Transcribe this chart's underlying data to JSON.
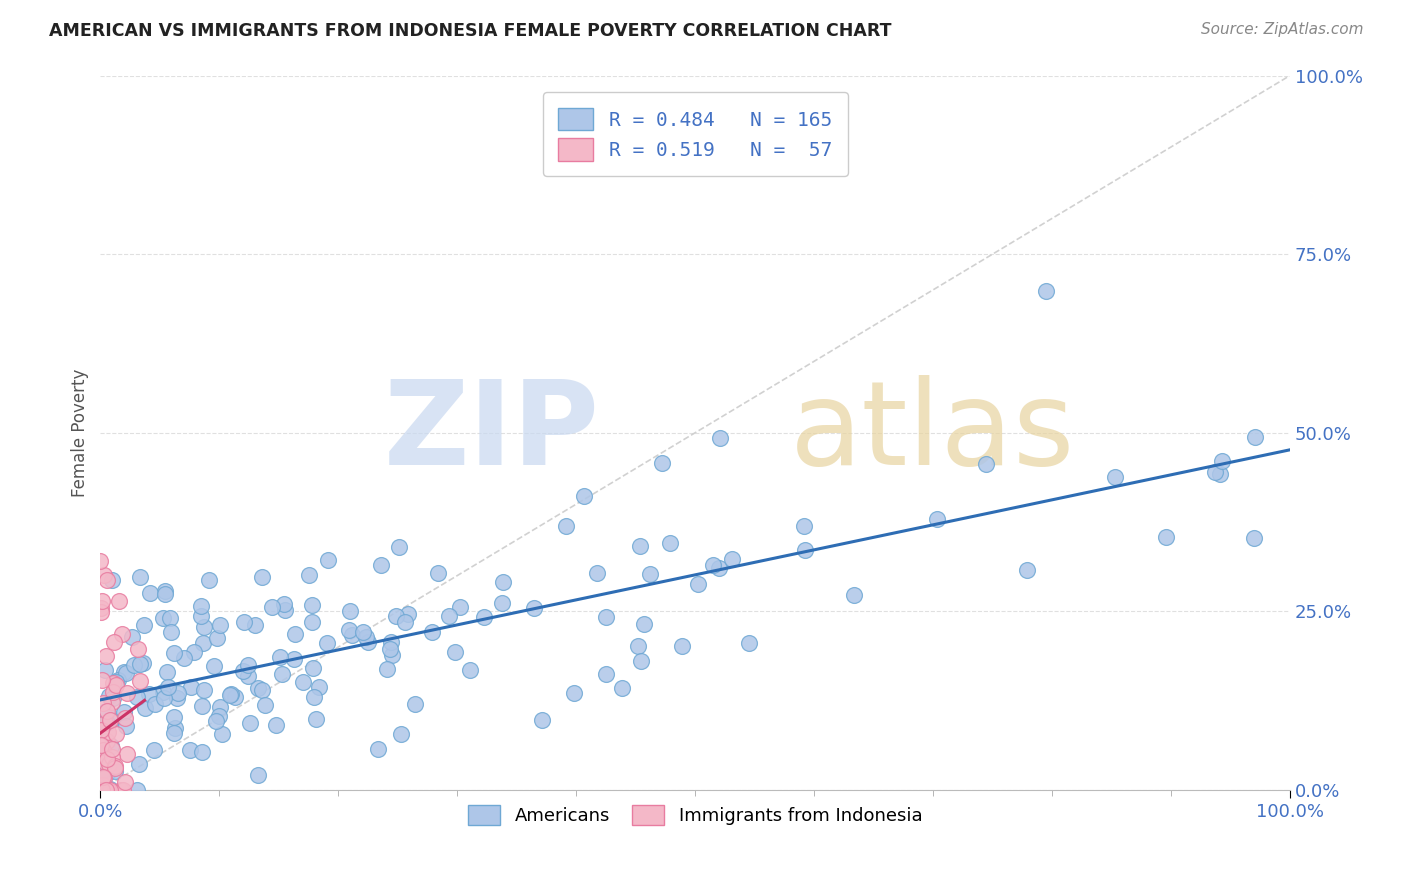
{
  "title": "AMERICAN VS IMMIGRANTS FROM INDONESIA FEMALE POVERTY CORRELATION CHART",
  "source": "Source: ZipAtlas.com",
  "ylabel": "Female Poverty",
  "ytick_labels": [
    "0.0%",
    "25.0%",
    "50.0%",
    "75.0%",
    "100.0%"
  ],
  "ytick_values": [
    0,
    0.25,
    0.5,
    0.75,
    1.0
  ],
  "american_color": "#aec6e8",
  "american_edge": "#6fa8d4",
  "indonesia_color": "#f4b8c8",
  "indonesia_edge": "#e87ca0",
  "regression_blue": "#2e6db4",
  "regression_pink": "#cc3366",
  "diagonal_color": "#cccccc",
  "watermark_zip": "ZIP",
  "watermark_atlas": "atlas",
  "watermark_color_zip": "#d8e4f0",
  "watermark_color_atlas": "#e8d8b0",
  "background_color": "#ffffff",
  "grid_color": "#e0e0e0",
  "xlim": [
    0,
    1
  ],
  "ylim": [
    0,
    1
  ],
  "R_american": 0.484,
  "N_american": 165,
  "R_indonesia": 0.519,
  "N_indonesia": 57,
  "title_color": "#222222",
  "source_color": "#888888",
  "tick_color": "#4472c4",
  "ylabel_color": "#555555"
}
